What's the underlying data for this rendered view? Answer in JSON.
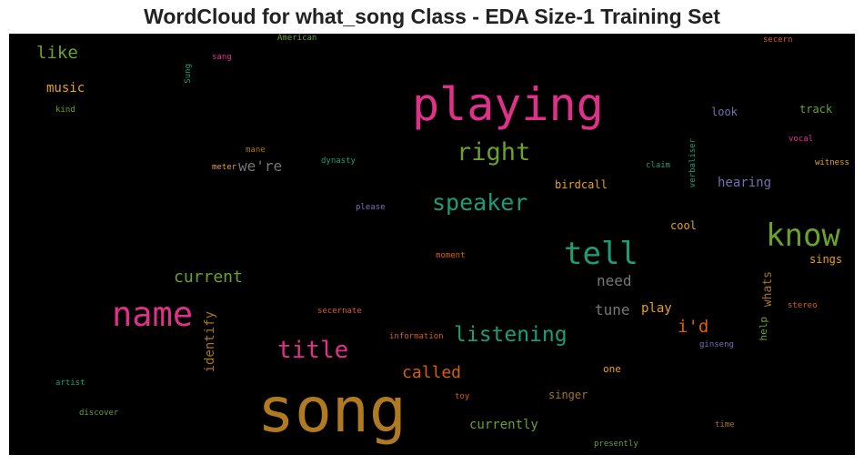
{
  "chart_data": {
    "type": "wordcloud",
    "title": "WordCloud for what_song Class - EDA Size-1 Training Set",
    "background": "#000000",
    "words": [
      {
        "text": "song",
        "color": "#b07a22"
      },
      {
        "text": "playing",
        "color": "#e0318a"
      },
      {
        "text": "name",
        "color": "#e0318a"
      },
      {
        "text": "know",
        "color": "#6aa22a"
      },
      {
        "text": "tell",
        "color": "#1b9e77"
      },
      {
        "text": "title",
        "color": "#e0318a"
      },
      {
        "text": "right",
        "color": "#6aa22a"
      },
      {
        "text": "speaker",
        "color": "#1b9e77"
      },
      {
        "text": "listening",
        "color": "#1b9e77"
      },
      {
        "text": "current",
        "color": "#6aa22a"
      },
      {
        "text": "called",
        "color": "#d95f02"
      },
      {
        "text": "i'd",
        "color": "#d95f02"
      },
      {
        "text": "like",
        "color": "#6aa22a"
      },
      {
        "text": "music",
        "color": "#e6a21a"
      },
      {
        "text": "we're",
        "color": "#777777"
      },
      {
        "text": "need",
        "color": "#777777"
      },
      {
        "text": "tune",
        "color": "#777777"
      },
      {
        "text": "identify",
        "color": "#a6761d"
      },
      {
        "text": "currently",
        "color": "#6aa22a"
      },
      {
        "text": "play",
        "color": "#e6a21a"
      },
      {
        "text": "whats",
        "color": "#a6761d"
      },
      {
        "text": "hearing",
        "color": "#7570b3"
      },
      {
        "text": "track",
        "color": "#6aa22a"
      },
      {
        "text": "singer",
        "color": "#a6761d"
      },
      {
        "text": "birdcall",
        "color": "#e6a21a"
      },
      {
        "text": "help",
        "color": "#6aa22a"
      },
      {
        "text": "cool",
        "color": "#e6a21a"
      },
      {
        "text": "sings",
        "color": "#e6a21a"
      },
      {
        "text": "look",
        "color": "#7570b3"
      },
      {
        "text": "one",
        "color": "#e6a21a"
      },
      {
        "text": "vocal",
        "color": "#e0318a"
      },
      {
        "text": "witness",
        "color": "#e6a21a"
      },
      {
        "text": "stereo",
        "color": "#d95f02"
      },
      {
        "text": "ginseng",
        "color": "#7570b3"
      },
      {
        "text": "toy",
        "color": "#d95f02"
      },
      {
        "text": "time",
        "color": "#a6761d"
      },
      {
        "text": "presently",
        "color": "#6aa22a"
      },
      {
        "text": "secern",
        "color": "#d95f02"
      },
      {
        "text": "verbaliser",
        "color": "#1b9e77"
      },
      {
        "text": "claim",
        "color": "#1b9e77"
      },
      {
        "text": "moment",
        "color": "#d95f02"
      },
      {
        "text": "information",
        "color": "#d95f02"
      },
      {
        "text": "secernate",
        "color": "#d95f02"
      },
      {
        "text": "please",
        "color": "#7570b3"
      },
      {
        "text": "dynasty",
        "color": "#1b9e77"
      },
      {
        "text": "mane",
        "color": "#a6761d"
      },
      {
        "text": "meter",
        "color": "#e6a21a"
      },
      {
        "text": "sang",
        "color": "#e0318a"
      },
      {
        "text": "Sung",
        "color": "#1b9e77"
      },
      {
        "text": "American",
        "color": "#6aa22a"
      },
      {
        "text": "kind",
        "color": "#6aa22a"
      },
      {
        "text": "artist",
        "color": "#1b9e77"
      },
      {
        "text": "discover",
        "color": "#6aa22a"
      }
    ]
  }
}
